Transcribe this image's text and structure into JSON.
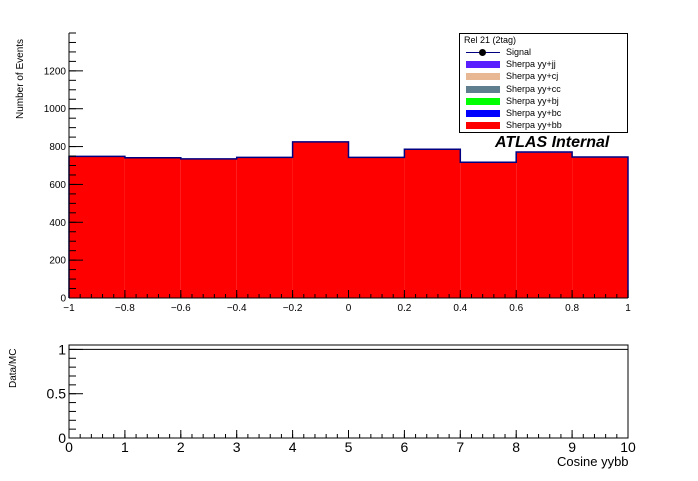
{
  "chart_data": [
    {
      "type": "bar",
      "panel": "main",
      "ylabel": "Number of Events",
      "xlim": [
        -1,
        1
      ],
      "ylim": [
        0,
        1400
      ],
      "x_ticks": [
        -1,
        -0.8,
        -0.6,
        -0.4,
        -0.2,
        0,
        0.2,
        0.4,
        0.6,
        0.8,
        1
      ],
      "x_tick_labels": [
        "−1",
        "−0.8",
        "−0.6",
        "−0.4",
        "−0.2",
        "0",
        "0.2",
        "0.4",
        "0.6",
        "0.8",
        "1"
      ],
      "y_ticks": [
        0,
        200,
        400,
        600,
        800,
        1000,
        1200
      ],
      "y_tick_labels": [
        "0",
        "200",
        "400",
        "600",
        "800",
        "1000",
        "1200"
      ],
      "bin_edges": [
        -1,
        -0.8,
        -0.6,
        -0.4,
        -0.2,
        0,
        0.2,
        0.4,
        0.6,
        0.8,
        1
      ],
      "stacked": true,
      "series": [
        {
          "name": "Sherpa yy+bb",
          "color": "#ff0000",
          "values": [
            745,
            738,
            732,
            740,
            822,
            740,
            783,
            714,
            768,
            742
          ]
        },
        {
          "name": "Sherpa yy+bc",
          "color": "#0000ff",
          "values": [
            3,
            3,
            3,
            3,
            3,
            3,
            3,
            3,
            3,
            3
          ]
        },
        {
          "name": "Sherpa yy+bj",
          "color": "#00ff00",
          "values": [
            0,
            0,
            0,
            0,
            0,
            0,
            0,
            0,
            0,
            0
          ]
        },
        {
          "name": "Sherpa yy+cc",
          "color": "#5f7f8f",
          "values": [
            0,
            0,
            0,
            0,
            0,
            0,
            0,
            0,
            0,
            0
          ]
        },
        {
          "name": "Sherpa yy+cj",
          "color": "#e8b894",
          "values": [
            0,
            0,
            0,
            0,
            0,
            0,
            0,
            0,
            0,
            0
          ]
        },
        {
          "name": "Sherpa yy+jj",
          "color": "#5a1fff",
          "values": [
            0,
            0,
            0,
            0,
            0,
            0,
            0,
            0,
            0,
            0
          ]
        }
      ],
      "signal": {
        "name": "Signal",
        "color": "#000080"
      },
      "legend": {
        "header": "Rel 21 (2tag)",
        "placement": "top-right",
        "entries": [
          "Signal",
          "Sherpa yy+jj",
          "Sherpa yy+cj",
          "Sherpa yy+cc",
          "Sherpa yy+bj",
          "Sherpa yy+bc",
          "Sherpa yy+bb"
        ]
      },
      "annotation": "ATLAS  Internal"
    },
    {
      "type": "scatter",
      "panel": "ratio",
      "ylabel": "Data/MC",
      "xlabel": "Cosine yybb",
      "xlim": [
        0,
        10
      ],
      "ylim": [
        0,
        1.05
      ],
      "x_ticks": [
        0,
        1,
        2,
        3,
        4,
        5,
        6,
        7,
        8,
        9,
        10
      ],
      "x_tick_labels": [
        "0",
        "1",
        "2",
        "3",
        "4",
        "5",
        "6",
        "7",
        "8",
        "9",
        "10"
      ],
      "y_ticks": [
        0,
        0.5,
        1
      ],
      "y_tick_labels": [
        "0",
        "0.5",
        "1"
      ],
      "reference_line": 1,
      "points": []
    }
  ]
}
